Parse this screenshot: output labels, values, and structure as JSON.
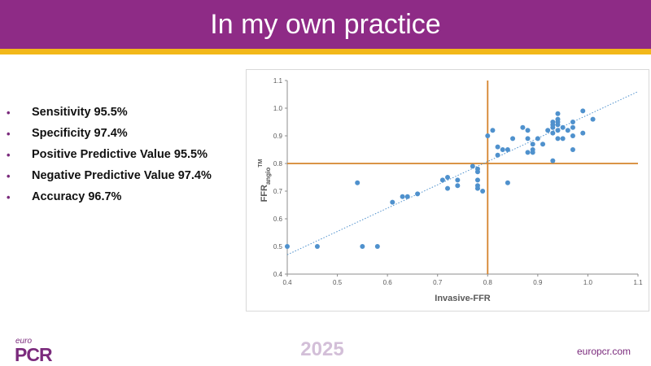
{
  "slide": {
    "title": "In my own practice",
    "bullets": [
      "Sensitivity 95.5%",
      "Specificity 97.4%",
      "Positive Predictive Value 95.5%",
      "Negative Predictive Value 97.4%",
      "Accuracy 96.7%"
    ],
    "bullet_glyph": "•"
  },
  "footer": {
    "logo_euro": "euro",
    "logo_pcr": "PCR",
    "year": "2025",
    "site": "europcr.com"
  },
  "colors": {
    "title_bar": "#8e2b86",
    "accent_line": "#f2b81a",
    "points": "#4f91cd",
    "threshold_lines": "#d5842d",
    "trendline": "#4f91cd"
  },
  "chart_data": {
    "type": "scatter",
    "xlabel": "Invasive-FFR",
    "ylabel": "FFRangio™",
    "ylabel_main": "FFR",
    "ylabel_sub": "angio",
    "ylabel_sup": "TM",
    "xlim": [
      0.4,
      1.1
    ],
    "ylim": [
      0.4,
      1.1
    ],
    "xticks": [
      "0.4",
      "0.5",
      "0.6",
      "0.7",
      "0.8",
      "0.9",
      "1.0",
      "1.1"
    ],
    "yticks": [
      "0.4",
      "0.5",
      "0.6",
      "0.7",
      "0.8",
      "0.9",
      "1.0",
      "1.1"
    ],
    "grid": false,
    "thresholds": {
      "x": 0.8,
      "y": 0.8
    },
    "trendline": {
      "style": "dotted",
      "from": [
        0.4,
        0.47
      ],
      "to": [
        1.1,
        1.06
      ]
    },
    "points": [
      [
        0.4,
        0.5
      ],
      [
        0.46,
        0.5
      ],
      [
        0.54,
        0.73
      ],
      [
        0.55,
        0.5
      ],
      [
        0.58,
        0.5
      ],
      [
        0.61,
        0.66
      ],
      [
        0.63,
        0.68
      ],
      [
        0.64,
        0.68
      ],
      [
        0.66,
        0.69
      ],
      [
        0.71,
        0.74
      ],
      [
        0.72,
        0.75
      ],
      [
        0.72,
        0.71
      ],
      [
        0.74,
        0.72
      ],
      [
        0.74,
        0.74
      ],
      [
        0.77,
        0.79
      ],
      [
        0.78,
        0.78
      ],
      [
        0.78,
        0.77
      ],
      [
        0.78,
        0.74
      ],
      [
        0.78,
        0.72
      ],
      [
        0.78,
        0.71
      ],
      [
        0.79,
        0.7
      ],
      [
        0.8,
        0.9
      ],
      [
        0.81,
        0.92
      ],
      [
        0.82,
        0.86
      ],
      [
        0.82,
        0.83
      ],
      [
        0.83,
        0.85
      ],
      [
        0.84,
        0.85
      ],
      [
        0.84,
        0.73
      ],
      [
        0.85,
        0.89
      ],
      [
        0.87,
        0.93
      ],
      [
        0.88,
        0.92
      ],
      [
        0.88,
        0.89
      ],
      [
        0.88,
        0.84
      ],
      [
        0.89,
        0.87
      ],
      [
        0.89,
        0.85
      ],
      [
        0.89,
        0.84
      ],
      [
        0.9,
        0.89
      ],
      [
        0.91,
        0.87
      ],
      [
        0.92,
        0.92
      ],
      [
        0.93,
        0.95
      ],
      [
        0.93,
        0.94
      ],
      [
        0.93,
        0.93
      ],
      [
        0.93,
        0.91
      ],
      [
        0.93,
        0.81
      ],
      [
        0.94,
        0.98
      ],
      [
        0.94,
        0.96
      ],
      [
        0.94,
        0.95
      ],
      [
        0.94,
        0.94
      ],
      [
        0.94,
        0.92
      ],
      [
        0.94,
        0.89
      ],
      [
        0.95,
        0.93
      ],
      [
        0.95,
        0.89
      ],
      [
        0.96,
        0.92
      ],
      [
        0.97,
        0.95
      ],
      [
        0.97,
        0.93
      ],
      [
        0.97,
        0.9
      ],
      [
        0.97,
        0.85
      ],
      [
        0.99,
        0.99
      ],
      [
        0.99,
        0.91
      ],
      [
        1.01,
        0.96
      ]
    ]
  }
}
